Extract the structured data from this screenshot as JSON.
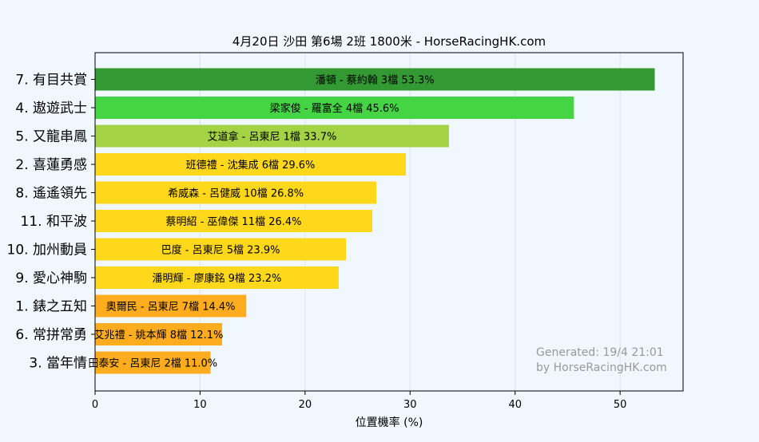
{
  "chart_data": {
    "type": "bar",
    "orientation": "horizontal",
    "title": "4月20日  沙田  第6場  2班  1800米 - HorseRacingHK.com",
    "xlabel": "位置機率 (%)",
    "ylabel": "",
    "xlim": [
      0,
      56
    ],
    "xticks": [
      0,
      10,
      20,
      30,
      40,
      50
    ],
    "grid": "vertical",
    "categories": [
      "7. 有目共賞",
      "4. 遨遊武士",
      "5. 又龍串鳳",
      "2. 喜蓮勇感",
      "8. 遙遙領先",
      "11. 和平波",
      "10. 加州動員",
      "9. 愛心神駒",
      "1. 錶之五知",
      "6. 常拼常勇",
      "3. 當年情"
    ],
    "values": [
      53.3,
      45.6,
      33.7,
      29.6,
      26.8,
      26.4,
      23.9,
      23.2,
      14.4,
      12.1,
      11.0
    ],
    "bar_labels": [
      "潘頓 - 蔡約翰 3檔  53.3%",
      "梁家俊 - 羅富全 4檔  45.6%",
      "艾道拿 - 呂東尼 1檔  33.7%",
      "班德禮 - 沈集成 6檔  29.6%",
      "希威森 - 呂健威 10檔  26.8%",
      "蔡明紹 - 巫偉傑 11檔  26.4%",
      "巴度 - 呂東尼 5檔  23.9%",
      "潘明輝 - 廖康銘 9檔  23.2%",
      "奧爾民 - 呂東尼 7檔  14.4%",
      "艾兆禮 - 姚本輝 8檔  12.1%",
      "田泰安 - 呂東尼 2檔  11.0%"
    ],
    "colors": [
      "#339933",
      "#44d444",
      "#a3d244",
      "#ffd71b",
      "#ffd71b",
      "#ffd71b",
      "#ffd71b",
      "#ffd71b",
      "#ffad1f",
      "#ffad1f",
      "#ffad1f"
    ],
    "annotation": [
      "Generated: 19/4 21:01",
      "by HorseRacingHK.com"
    ]
  }
}
